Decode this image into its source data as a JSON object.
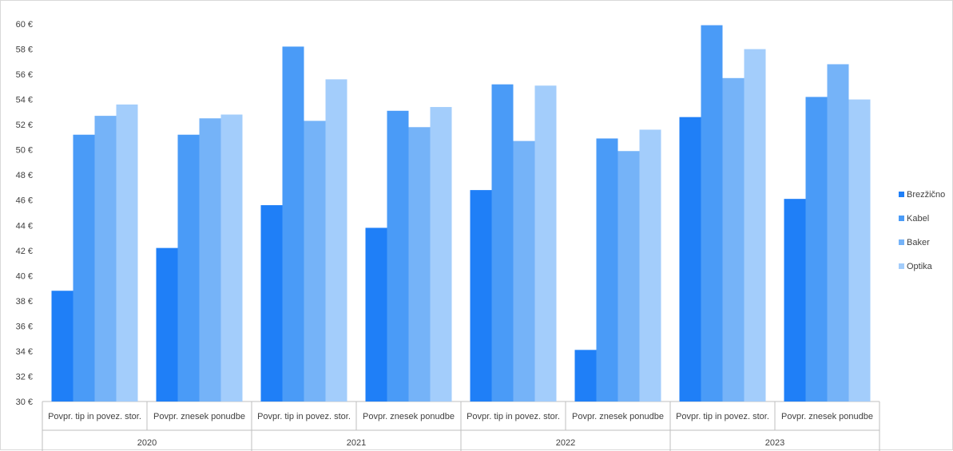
{
  "chart_data": {
    "type": "bar",
    "title": "",
    "xlabel": "",
    "ylabel": "",
    "ylim": [
      30,
      60
    ],
    "y_step": 2,
    "y_unit": "€",
    "grid": false,
    "legend_position": "right",
    "categories": [
      {
        "group": "2020",
        "label": "Povpr. tip in povez. stor."
      },
      {
        "group": "2020",
        "label": "Povpr. znesek ponudbe"
      },
      {
        "group": "2021",
        "label": "Povpr. tip in povez. stor."
      },
      {
        "group": "2021",
        "label": "Povpr. znesek ponudbe"
      },
      {
        "group": "2022",
        "label": "Povpr. tip in povez. stor."
      },
      {
        "group": "2022",
        "label": "Povpr. znesek ponudbe"
      },
      {
        "group": "2023",
        "label": "Povpr. tip in povez. stor."
      },
      {
        "group": "2023",
        "label": "Povpr. znesek ponudbe"
      }
    ],
    "groups": [
      "2020",
      "2021",
      "2022",
      "2023"
    ],
    "series": [
      {
        "name": "Brezžično",
        "color": "#1f7ff7",
        "values": [
          38.8,
          42.2,
          45.6,
          43.8,
          46.8,
          34.1,
          52.6,
          46.1
        ]
      },
      {
        "name": "Kabel",
        "color": "#4a9bf7",
        "values": [
          51.2,
          51.2,
          58.2,
          53.1,
          55.2,
          50.9,
          59.9,
          54.2
        ]
      },
      {
        "name": "Baker",
        "color": "#75b3f8",
        "values": [
          52.7,
          52.5,
          52.3,
          51.8,
          50.7,
          49.9,
          55.7,
          56.8
        ]
      },
      {
        "name": "Optika",
        "color": "#a3cdfb",
        "values": [
          53.6,
          52.8,
          55.6,
          53.4,
          55.1,
          51.6,
          58.0,
          54.0
        ]
      }
    ]
  }
}
